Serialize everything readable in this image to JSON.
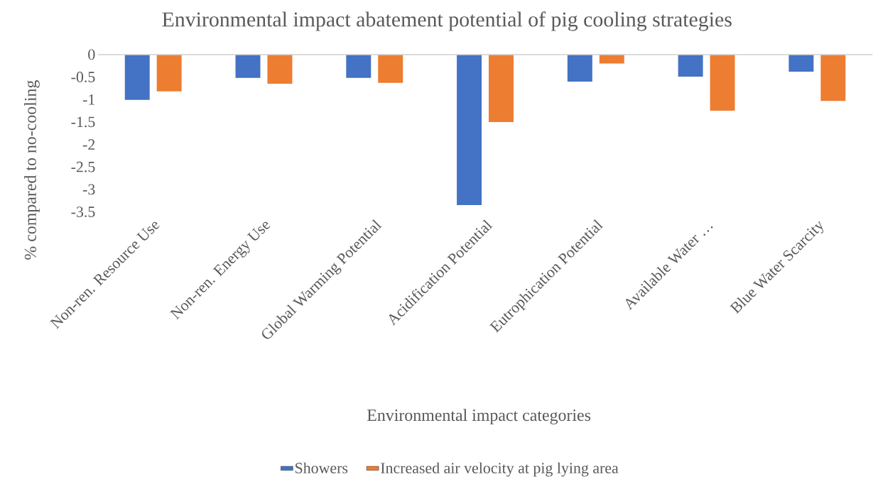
{
  "chart_data": {
    "type": "bar",
    "title": "Environmental impact abatement potential of pig cooling strategies",
    "xlabel": "Environmental impact categories",
    "ylabel": "% compared to no-cooling",
    "categories": [
      "Non-ren. Resource Use",
      "Non-ren. Energy Use",
      "Global Warming Potential",
      "Acidification Potential",
      "Eutrophication Potential",
      "Available Water …",
      "Blue Water Scarcity"
    ],
    "series": [
      {
        "name": "Showers",
        "color": "#4472c4",
        "values": [
          -1.01,
          -0.52,
          -0.52,
          -3.35,
          -0.6,
          -0.49,
          -0.38
        ]
      },
      {
        "name": "Increased air velocity at pig lying area",
        "color": "#ed7d31",
        "values": [
          -0.82,
          -0.65,
          -0.63,
          -1.5,
          -0.2,
          -1.25,
          -1.03
        ]
      }
    ],
    "ylim": [
      -3.5,
      0
    ],
    "yticks": [
      0,
      -0.5,
      -1,
      -1.5,
      -2,
      -2.5,
      -3,
      -3.5
    ],
    "grid": false,
    "legend": "bottom"
  }
}
